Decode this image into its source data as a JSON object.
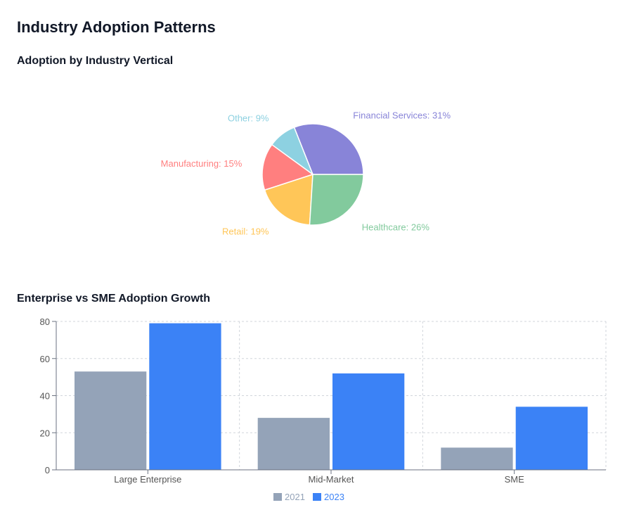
{
  "page": {
    "title": "Industry Adoption Patterns"
  },
  "colors": {
    "financial": "#8884d8",
    "other": "#8dd1e1",
    "manufacturing": "#ff7f7f",
    "retail": "#ffc658",
    "healthcare": "#82ca9d",
    "series_2021": "#94a3b8",
    "series_2023": "#3b82f6",
    "grid": "#d1d5db",
    "axis": "#6b7280"
  },
  "chart_data": [
    {
      "type": "pie",
      "title": "Adoption by Industry Vertical",
      "slices": [
        {
          "name": "Financial Services",
          "value": 31,
          "label": "Financial Services: 31%",
          "color": "#8884d8"
        },
        {
          "name": "Other",
          "value": 9,
          "label": "Other: 9%",
          "color": "#8dd1e1"
        },
        {
          "name": "Manufacturing",
          "value": 15,
          "label": "Manufacturing: 15%",
          "color": "#ff7f7f"
        },
        {
          "name": "Retail",
          "value": 19,
          "label": "Retail: 19%",
          "color": "#ffc658"
        },
        {
          "name": "Healthcare",
          "value": 26,
          "label": "Healthcare: 26%",
          "color": "#82ca9d"
        }
      ]
    },
    {
      "type": "bar",
      "title": "Enterprise vs SME Adoption Growth",
      "categories": [
        "Large Enterprise",
        "Mid-Market",
        "SME"
      ],
      "series": [
        {
          "name": "2021",
          "values": [
            53,
            28,
            12
          ],
          "color": "#94a3b8"
        },
        {
          "name": "2023",
          "values": [
            79,
            52,
            34
          ],
          "color": "#3b82f6"
        }
      ],
      "ylim": [
        0,
        80
      ],
      "yticks": [
        "0",
        "20",
        "40",
        "60",
        "80"
      ],
      "grid": true,
      "legend": "bottom-center"
    }
  ]
}
